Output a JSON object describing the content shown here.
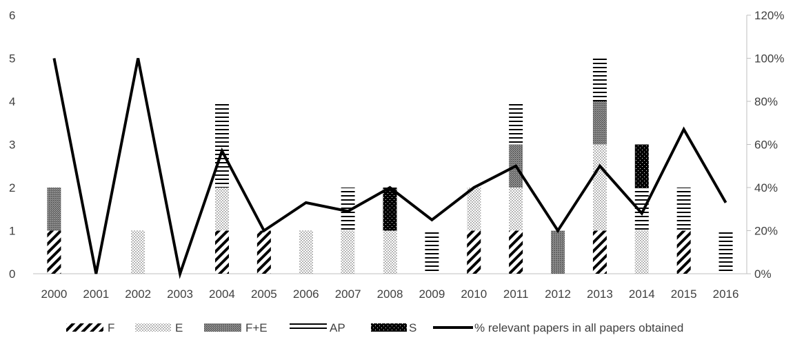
{
  "chart_data": {
    "type": "bar",
    "categories": [
      "2000",
      "2001",
      "2002",
      "2003",
      "2004",
      "2005",
      "2006",
      "2007",
      "2008",
      "2009",
      "2010",
      "2011",
      "2012",
      "2013",
      "2014",
      "2015",
      "2016"
    ],
    "stacked": true,
    "series": [
      {
        "name": "F",
        "pattern": "diagonal-hatch",
        "values": [
          1,
          0,
          0,
          0,
          1,
          1,
          0,
          0,
          0,
          0,
          1,
          1,
          0,
          1,
          0,
          1,
          0
        ]
      },
      {
        "name": "E",
        "pattern": "dots",
        "values": [
          0,
          0,
          1,
          0,
          1,
          0,
          1,
          1,
          1,
          0,
          1,
          1,
          0,
          2,
          1,
          0,
          0
        ]
      },
      {
        "name": "F+E",
        "pattern": "dense-grey",
        "values": [
          1,
          0,
          0,
          0,
          0,
          0,
          0,
          0,
          0,
          0,
          0,
          1,
          1,
          1,
          0,
          0,
          0
        ]
      },
      {
        "name": "AP",
        "pattern": "horizontal-lines",
        "values": [
          0,
          0,
          0,
          0,
          2,
          0,
          0,
          1,
          0,
          1,
          0,
          1,
          0,
          1,
          1,
          1,
          1
        ]
      },
      {
        "name": "S",
        "pattern": "checker-black",
        "values": [
          0,
          0,
          0,
          0,
          0,
          0,
          0,
          0,
          1,
          0,
          0,
          0,
          0,
          0,
          1,
          0,
          0
        ]
      }
    ],
    "line_series": {
      "name": "% relevant papers in all papers obtained",
      "axis": "right",
      "values": [
        100,
        0,
        100,
        0,
        57,
        20,
        33,
        29,
        40,
        25,
        40,
        50,
        20,
        50,
        28,
        67,
        33
      ]
    },
    "y_left": {
      "min": 0,
      "max": 6,
      "ticks": [
        "0",
        "1",
        "2",
        "3",
        "4",
        "5",
        "6"
      ]
    },
    "y_right": {
      "min": 0,
      "max": 120,
      "ticks": [
        "0%",
        "20%",
        "40%",
        "60%",
        "80%",
        "100%",
        "120%"
      ]
    },
    "grid": false,
    "legend_position": "bottom",
    "colors": {
      "line": "#000000",
      "axis": "#bfbfbf",
      "text": "#404040",
      "bar_fill": "#000000"
    }
  }
}
